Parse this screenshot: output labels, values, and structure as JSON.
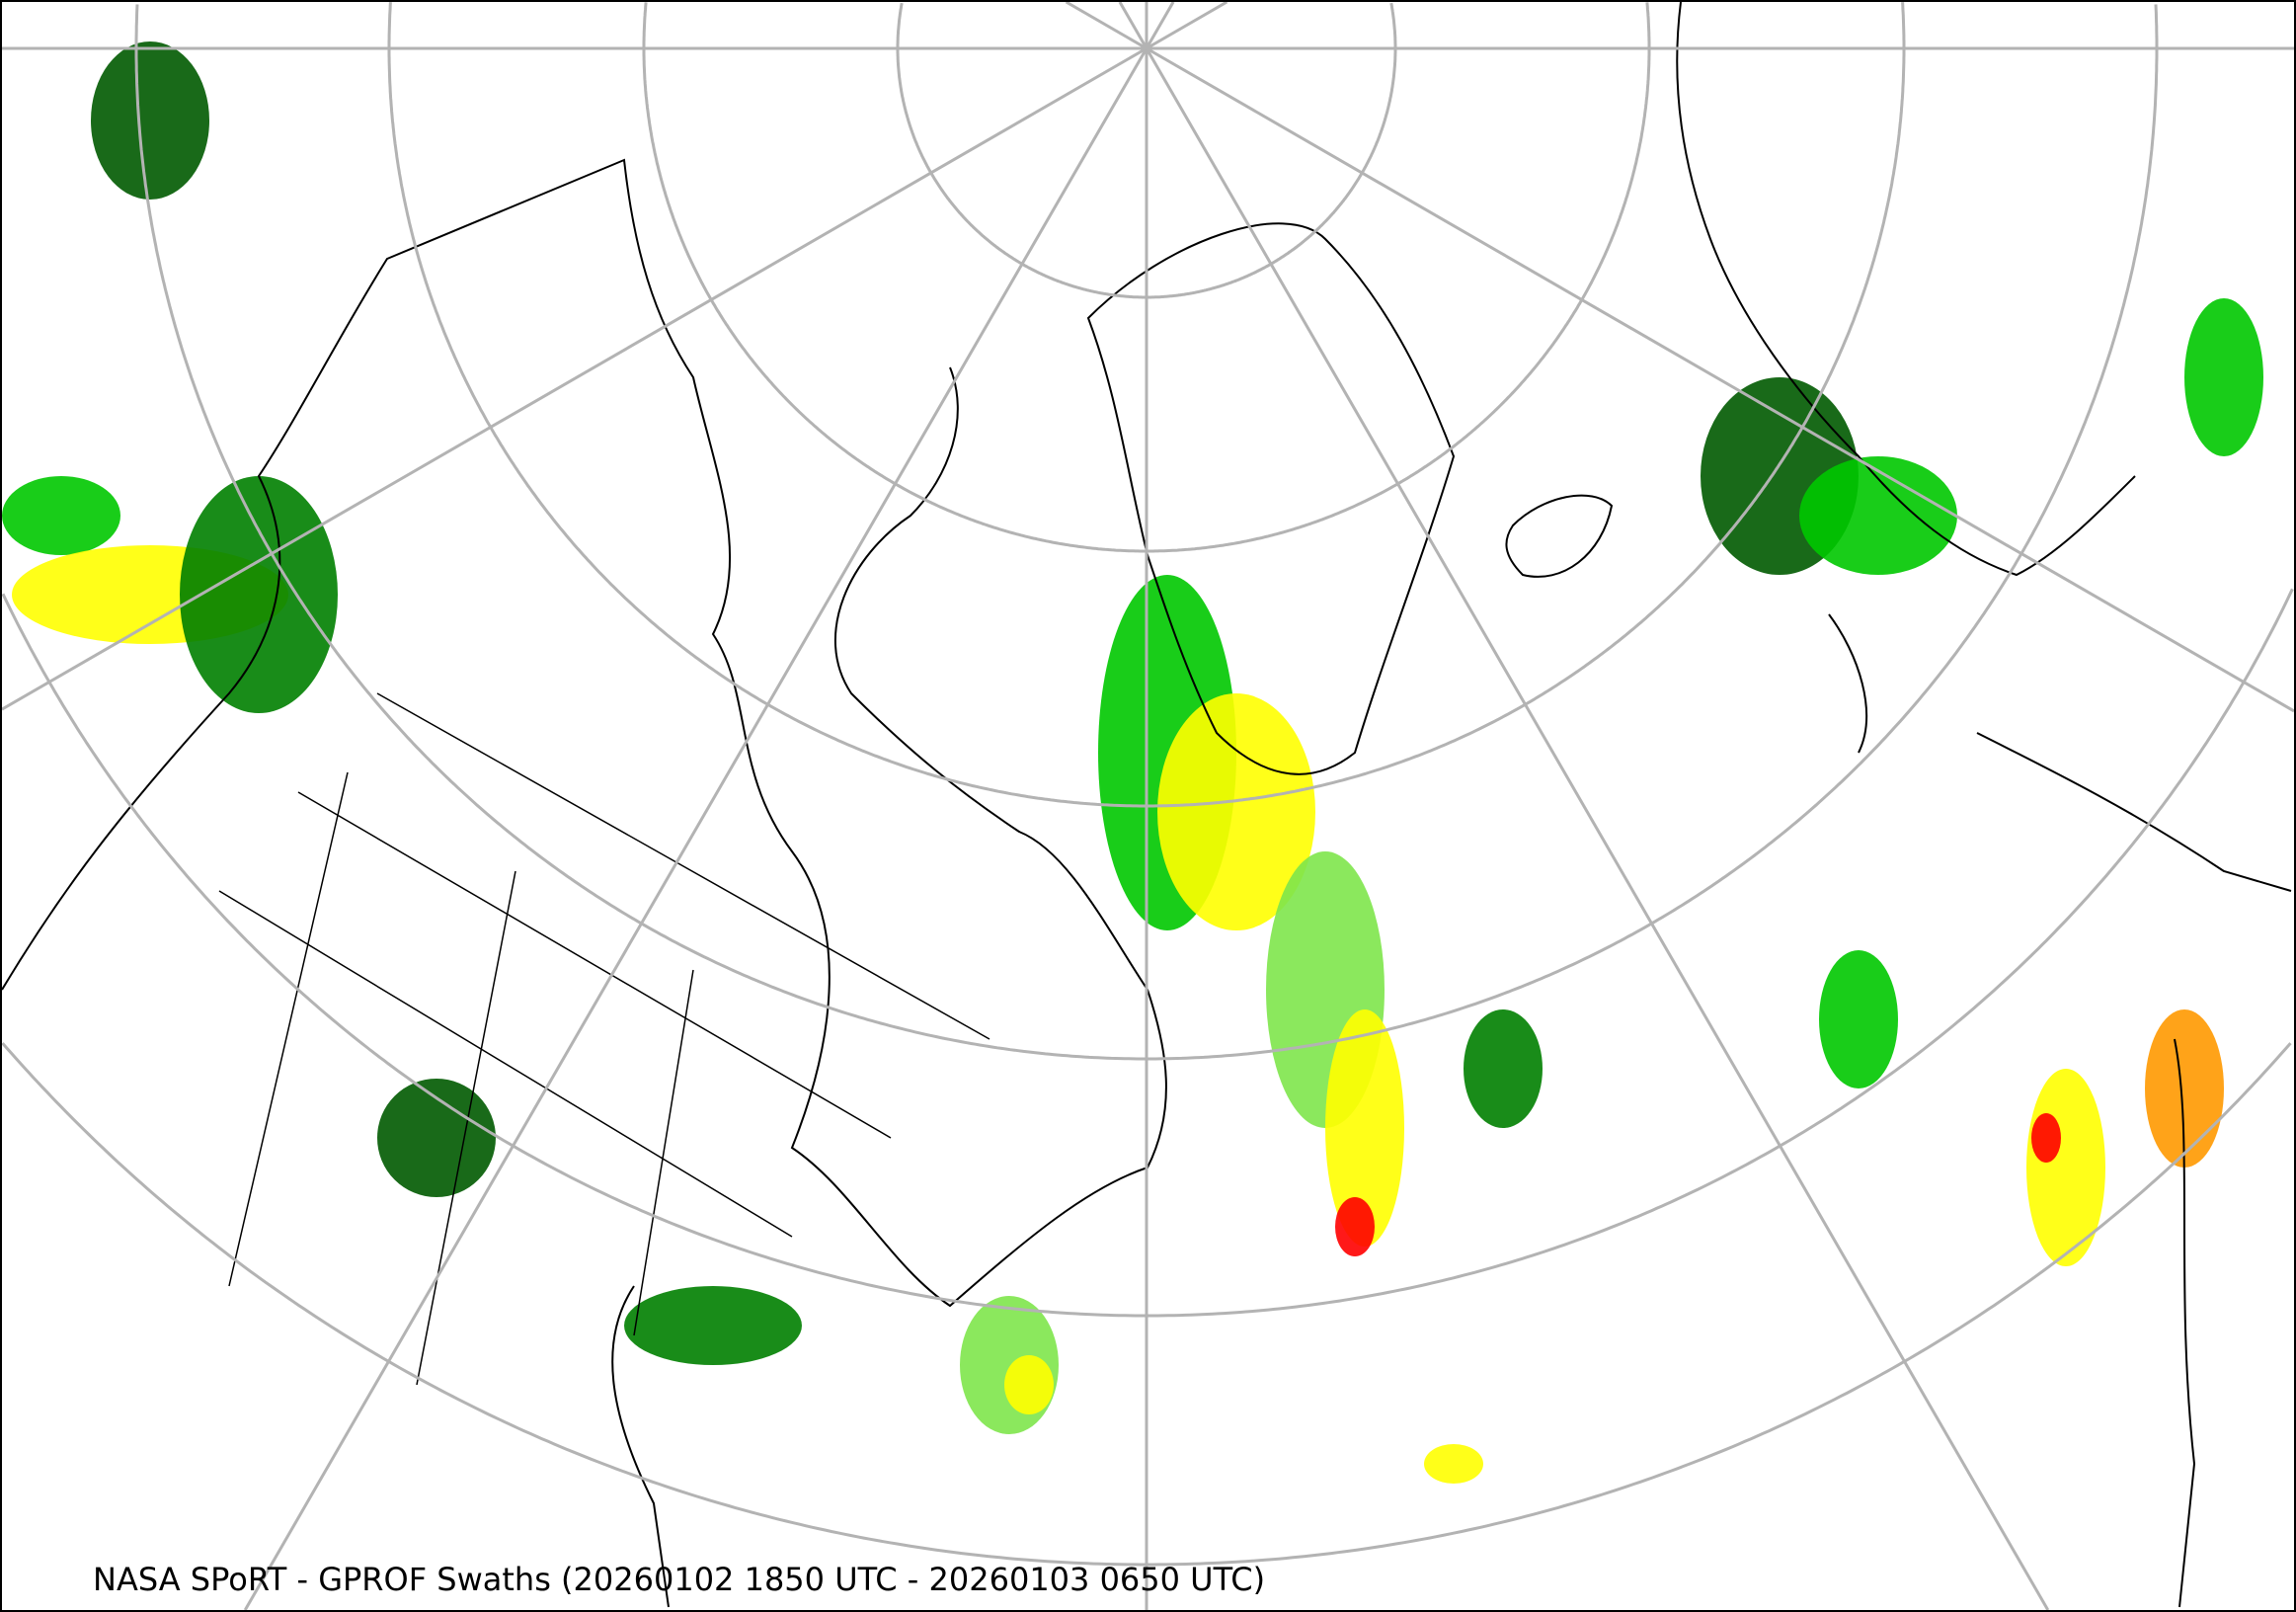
{
  "title": "NASA SPoRT - GPROF Swaths (20260102 1850 UTC - 20260103 0650 UTC)",
  "map": {
    "projection": "north-polar-stereographic",
    "graticule_color": "#b3b3b3",
    "coastline_color": "#000000",
    "precip_colors": [
      "#005a00",
      "#007f00",
      "#00c800",
      "#7ee64b",
      "#ffff00",
      "#ff9900",
      "#ff0000"
    ]
  }
}
